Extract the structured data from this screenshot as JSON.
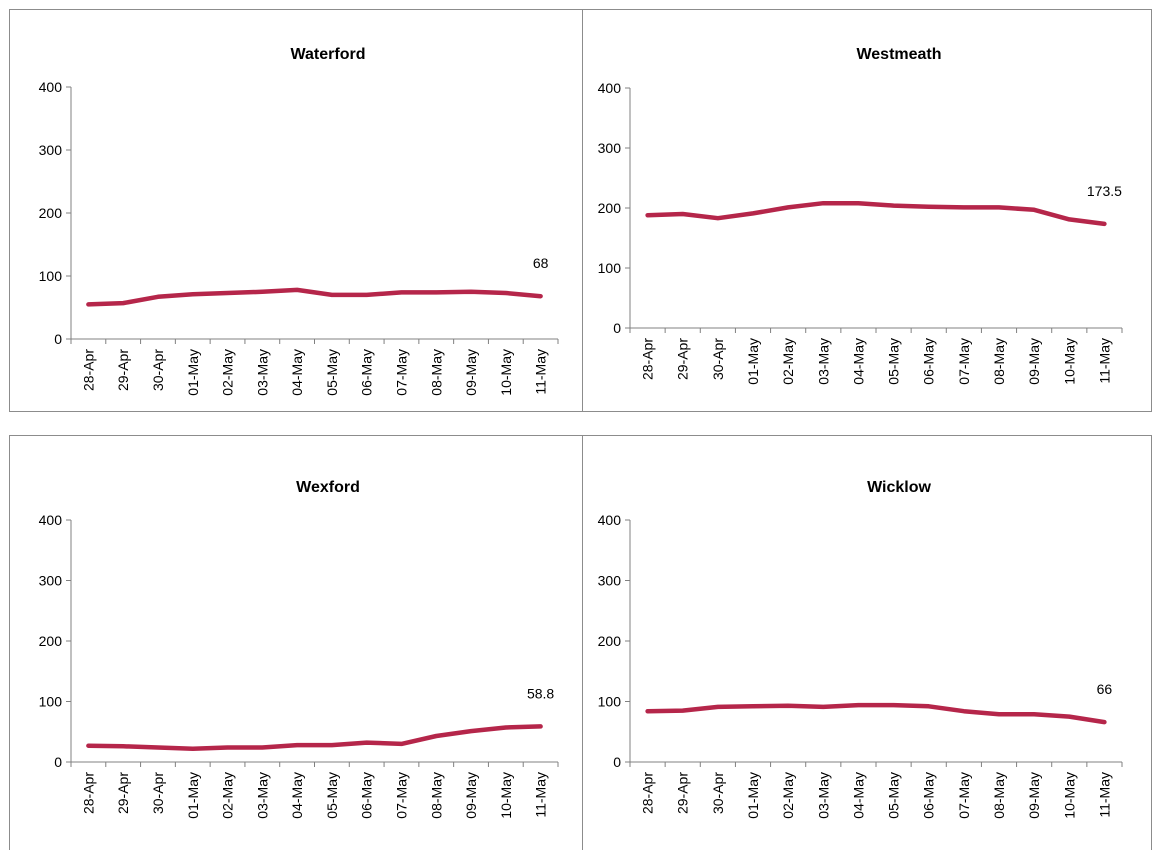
{
  "chart_data": [
    {
      "type": "line",
      "title": "Waterford",
      "categories": [
        "28-Apr",
        "29-Apr",
        "30-Apr",
        "01-May",
        "02-May",
        "03-May",
        "04-May",
        "05-May",
        "06-May",
        "07-May",
        "08-May",
        "09-May",
        "10-May",
        "11-May"
      ],
      "values": [
        55,
        57,
        67,
        71,
        73,
        75,
        78,
        70,
        70,
        74,
        74,
        75,
        73,
        68
      ],
      "data_label": "68",
      "ylim": [
        0,
        400
      ],
      "yticks": [
        "0",
        "100",
        "200",
        "300",
        "400"
      ],
      "xlabel": "",
      "ylabel": "",
      "grid": false,
      "line_color": "#b5264a"
    },
    {
      "type": "line",
      "title": "Westmeath",
      "categories": [
        "28-Apr",
        "29-Apr",
        "30-Apr",
        "01-May",
        "02-May",
        "03-May",
        "04-May",
        "05-May",
        "06-May",
        "07-May",
        "08-May",
        "09-May",
        "10-May",
        "11-May"
      ],
      "values": [
        188,
        190,
        183,
        191,
        201,
        208,
        208,
        204,
        202,
        201,
        201,
        197,
        181,
        173.5
      ],
      "data_label": "173.5",
      "ylim": [
        0,
        400
      ],
      "yticks": [
        "0",
        "100",
        "200",
        "300",
        "400"
      ],
      "xlabel": "",
      "ylabel": "",
      "grid": false,
      "line_color": "#b5264a"
    },
    {
      "type": "line",
      "title": "Wexford",
      "categories": [
        "28-Apr",
        "29-Apr",
        "30-Apr",
        "01-May",
        "02-May",
        "03-May",
        "04-May",
        "05-May",
        "06-May",
        "07-May",
        "08-May",
        "09-May",
        "10-May",
        "11-May"
      ],
      "values": [
        27,
        26,
        24,
        22,
        24,
        24,
        28,
        28,
        32,
        30,
        43,
        51,
        57,
        58.8
      ],
      "data_label": "58.8",
      "ylim": [
        0,
        400
      ],
      "yticks": [
        "0",
        "100",
        "200",
        "300",
        "400"
      ],
      "xlabel": "",
      "ylabel": "",
      "grid": false,
      "line_color": "#b5264a"
    },
    {
      "type": "line",
      "title": "Wicklow",
      "categories": [
        "28-Apr",
        "29-Apr",
        "30-Apr",
        "01-May",
        "02-May",
        "03-May",
        "04-May",
        "05-May",
        "06-May",
        "07-May",
        "08-May",
        "09-May",
        "10-May",
        "11-May"
      ],
      "values": [
        84,
        85,
        91,
        92,
        93,
        91,
        94,
        94,
        92,
        84,
        79,
        79,
        75,
        66
      ],
      "data_label": "66",
      "ylim": [
        0,
        400
      ],
      "yticks": [
        "0",
        "100",
        "200",
        "300",
        "400"
      ],
      "xlabel": "",
      "ylabel": "",
      "grid": false,
      "line_color": "#b5264a"
    }
  ]
}
